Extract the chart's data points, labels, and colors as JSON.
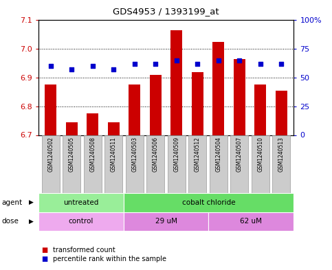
{
  "title": "GDS4953 / 1393199_at",
  "samples": [
    "GSM1240502",
    "GSM1240505",
    "GSM1240508",
    "GSM1240511",
    "GSM1240503",
    "GSM1240506",
    "GSM1240509",
    "GSM1240512",
    "GSM1240504",
    "GSM1240507",
    "GSM1240510",
    "GSM1240513"
  ],
  "bar_values": [
    6.875,
    6.745,
    6.775,
    6.745,
    6.875,
    6.91,
    7.065,
    6.92,
    7.025,
    6.965,
    6.875,
    6.855
  ],
  "percentile_values": [
    60,
    57,
    60,
    57,
    62,
    62,
    65,
    62,
    65,
    65,
    62,
    62
  ],
  "bar_bottom": 6.7,
  "ylim_left": [
    6.7,
    7.1
  ],
  "ylim_right": [
    0,
    100
  ],
  "yticks_left": [
    6.7,
    6.8,
    6.9,
    7.0,
    7.1
  ],
  "yticks_right": [
    0,
    25,
    50,
    75,
    100
  ],
  "ytick_labels_right": [
    "0",
    "25",
    "50",
    "75",
    "100%"
  ],
  "bar_color": "#cc0000",
  "percentile_color": "#0000cc",
  "agent_groups": [
    {
      "label": "untreated",
      "start": 0,
      "end": 4,
      "color": "#99ee99"
    },
    {
      "label": "cobalt chloride",
      "start": 4,
      "end": 12,
      "color": "#66dd66"
    }
  ],
  "dose_groups": [
    {
      "label": "control",
      "start": 0,
      "end": 4,
      "color": "#eeaaee"
    },
    {
      "label": "29 uM",
      "start": 4,
      "end": 8,
      "color": "#dd88dd"
    },
    {
      "label": "62 uM",
      "start": 8,
      "end": 12,
      "color": "#dd88dd"
    }
  ],
  "agent_label": "agent",
  "dose_label": "dose",
  "legend_bar_label": "transformed count",
  "legend_pct_label": "percentile rank within the sample",
  "bar_color_hex": "#cc0000",
  "percentile_color_hex": "#0000cc",
  "left_tick_color": "#cc0000",
  "right_tick_color": "#0000cc",
  "sample_box_color": "#cccccc",
  "sample_box_edgecolor": "#999999"
}
